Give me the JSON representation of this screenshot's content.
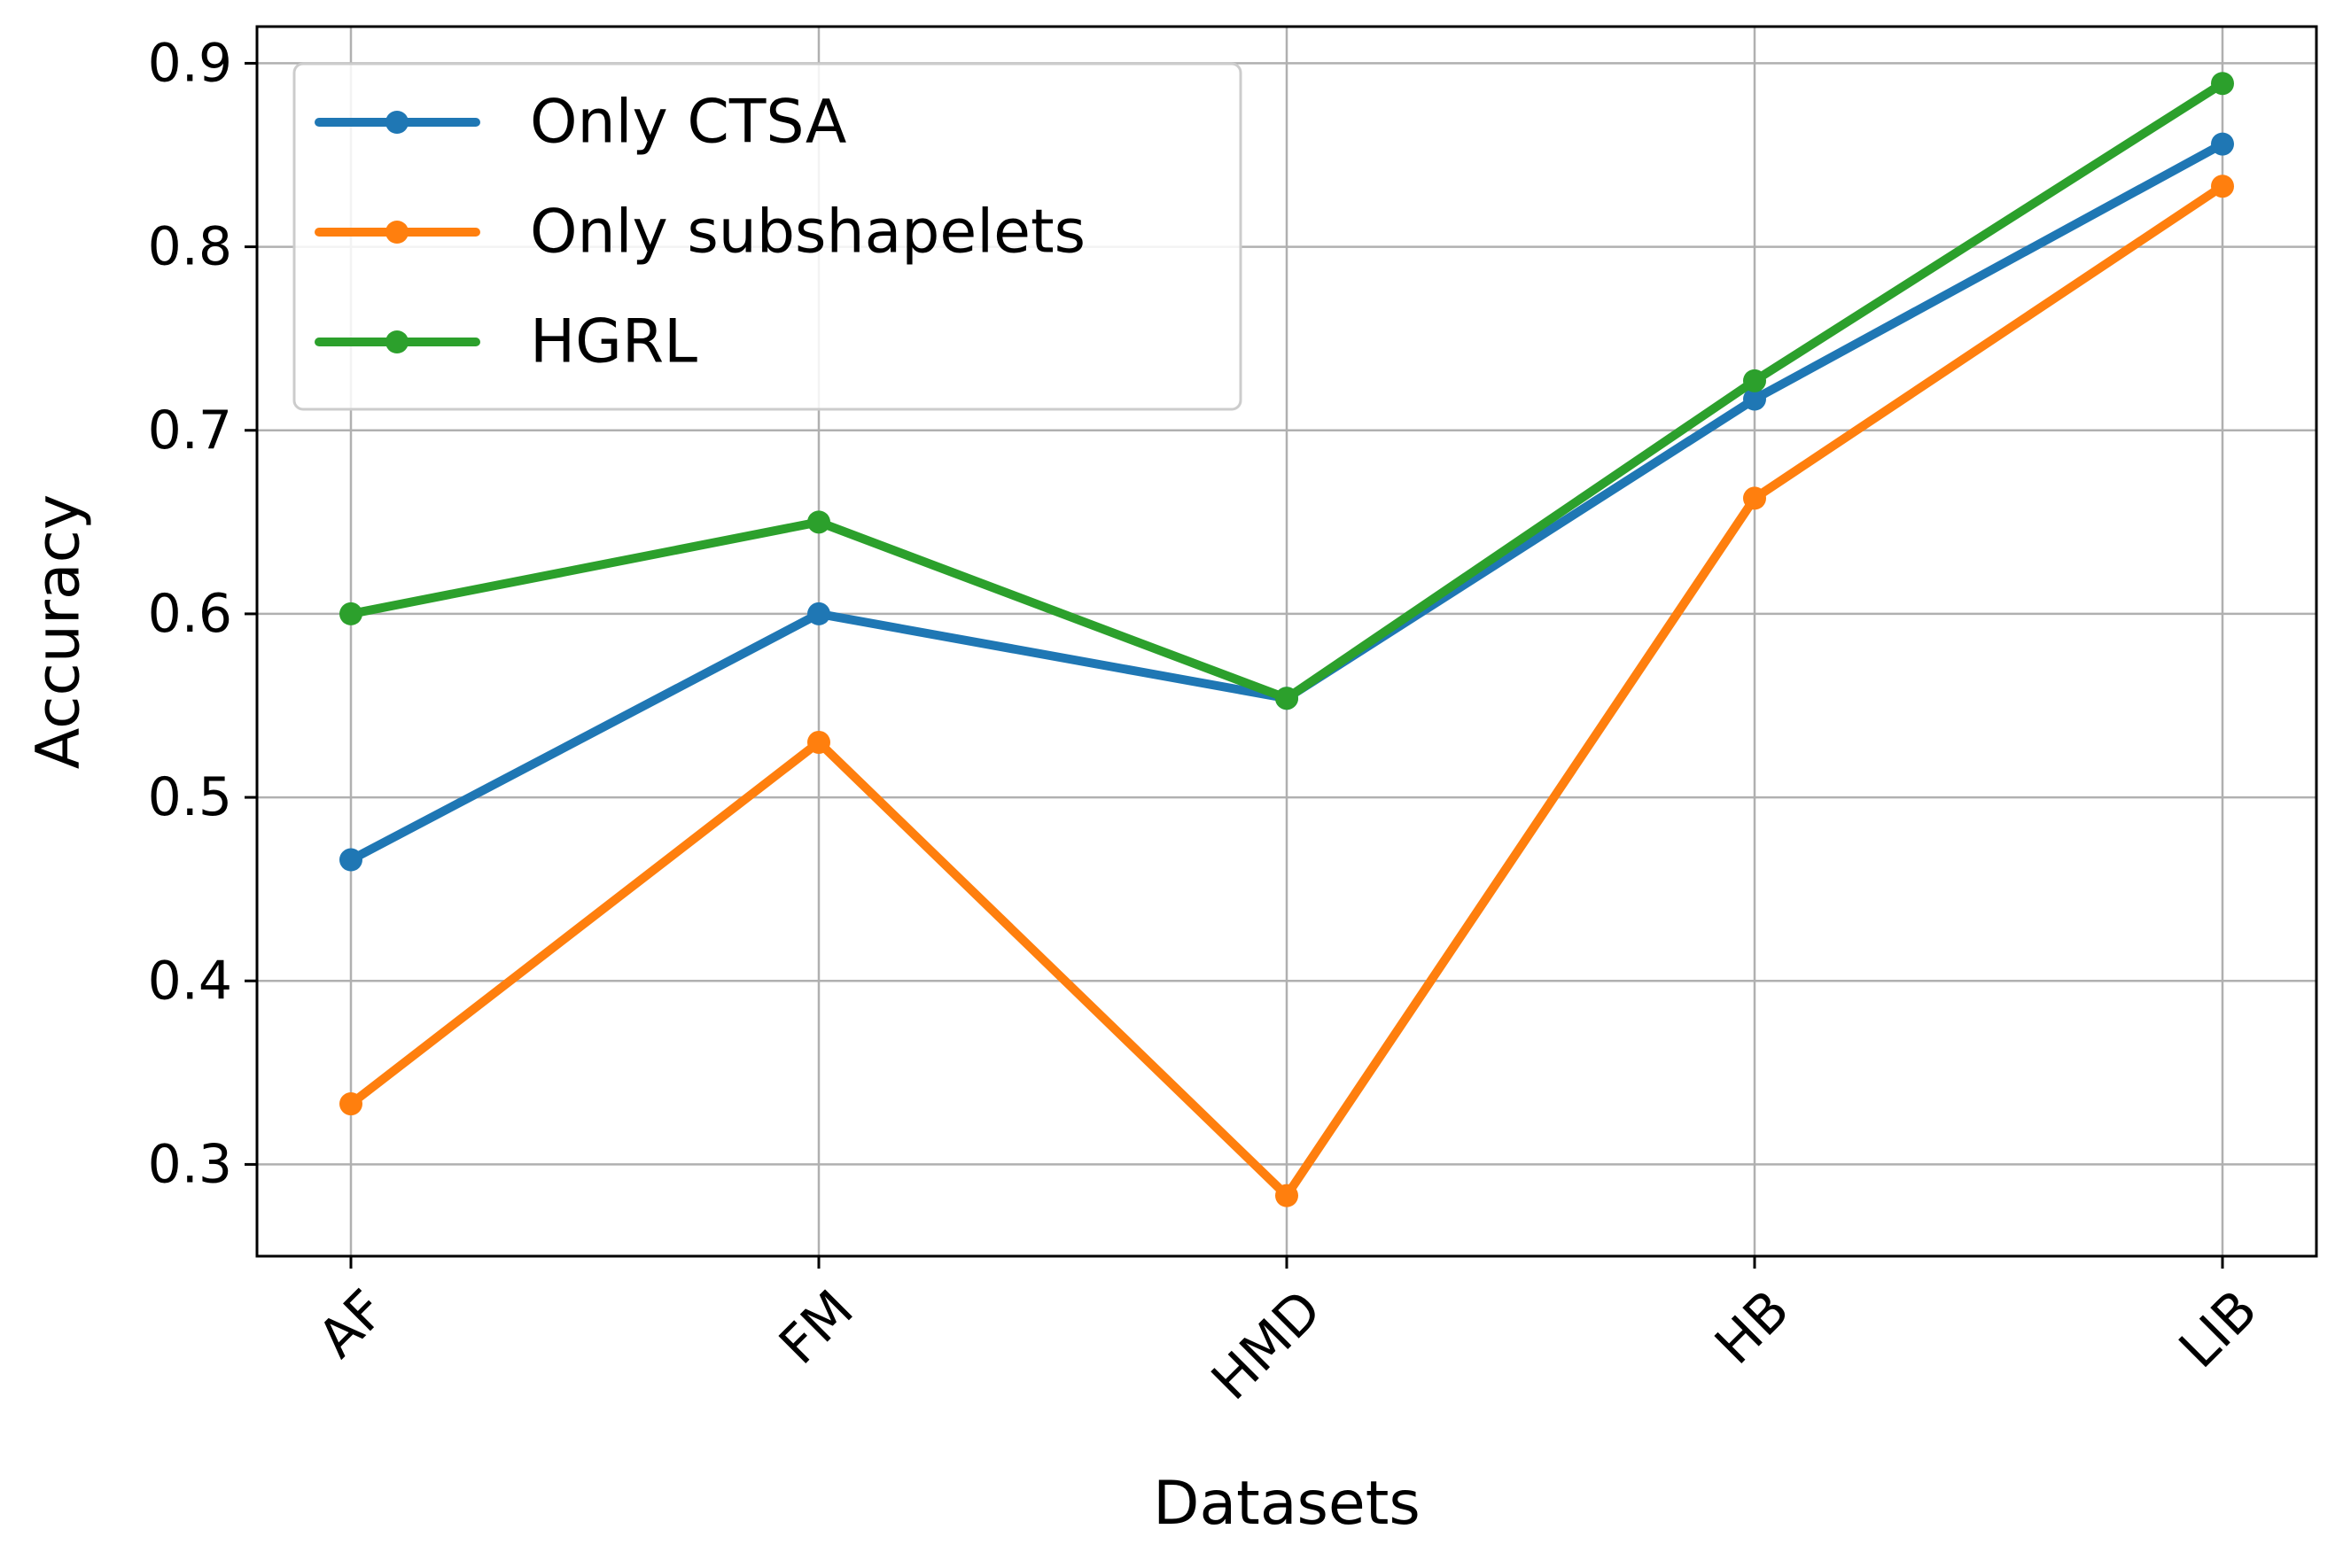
{
  "chart_data": {
    "type": "line",
    "title": "",
    "xlabel": "Datasets",
    "ylabel": "Accuracy",
    "categories": [
      "AF",
      "FM",
      "HMD",
      "HB",
      "LIB"
    ],
    "ylim": [
      0.25,
      0.92
    ],
    "yticks": [
      "0.3",
      "0.4",
      "0.5",
      "0.6",
      "0.7",
      "0.8",
      "0.9"
    ],
    "grid": true,
    "legend_position": "upper-left",
    "x_tick_rotation_deg": 45,
    "series": [
      {
        "name": "Only CTSA",
        "color": "#1f77b4",
        "values": [
          0.466,
          0.6,
          0.554,
          0.717,
          0.856
        ]
      },
      {
        "name": "Only subshapelets",
        "color": "#ff7f0e",
        "values": [
          0.333,
          0.53,
          0.283,
          0.663,
          0.833
        ]
      },
      {
        "name": "HGRL",
        "color": "#2ca02c",
        "values": [
          0.6,
          0.65,
          0.554,
          0.727,
          0.889
        ]
      }
    ]
  }
}
